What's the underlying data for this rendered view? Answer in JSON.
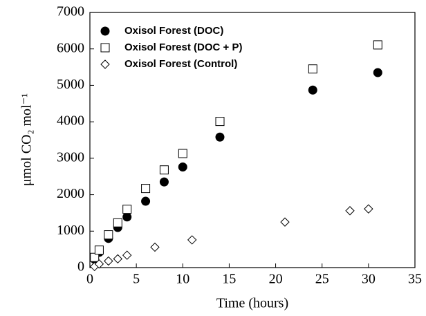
{
  "chart_data": {
    "type": "scatter",
    "xlabel": "Time (hours)",
    "ylabel": "μmol CO₂ mol⁻¹",
    "xlim": [
      0,
      35
    ],
    "xticks": [
      0,
      5,
      10,
      15,
      20,
      25,
      30,
      35
    ],
    "ylim": [
      0,
      7000
    ],
    "yticks": [
      0,
      1000,
      2000,
      3000,
      4000,
      5000,
      6000,
      7000
    ],
    "legend": "upper left",
    "series": [
      {
        "name": "Oxisol Forest (DOC)",
        "color": "#000000",
        "marker": "circle",
        "filled": true,
        "x": [
          0.5,
          1,
          2,
          3,
          4,
          6,
          8,
          10,
          14,
          24,
          31
        ],
        "values": [
          230,
          420,
          800,
          1100,
          1390,
          1820,
          2350,
          2760,
          3580,
          4870,
          5350
        ]
      },
      {
        "name": "Oxisol Forest (DOC + P)",
        "color": "#000000",
        "marker": "square",
        "filled": false,
        "x": [
          0.5,
          1,
          2,
          3,
          4,
          6,
          8,
          10,
          14,
          24,
          31
        ],
        "values": [
          280,
          480,
          900,
          1230,
          1600,
          2170,
          2680,
          3130,
          4010,
          5450,
          6110
        ]
      },
      {
        "name": "Oxisol Forest (Control)",
        "color": "#000000",
        "marker": "diamond",
        "filled": false,
        "x": [
          0.5,
          1,
          2,
          3,
          4,
          7,
          11,
          21,
          28,
          30
        ],
        "values": [
          30,
          100,
          180,
          240,
          340,
          560,
          760,
          1250,
          1560,
          1610
        ]
      }
    ]
  }
}
